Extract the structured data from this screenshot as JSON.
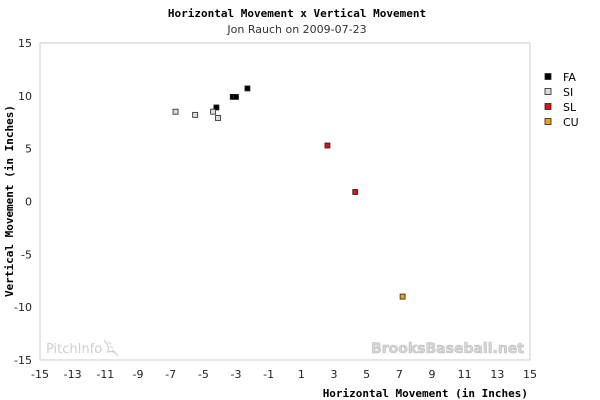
{
  "chart_data": {
    "type": "scatter",
    "title": "Horizontal Movement x Vertical Movement",
    "subtitle": "Jon Rauch on 2009-07-23",
    "xlabel": "Horizontal Movement (in Inches)",
    "ylabel": "Vertical Movement (in Inches)",
    "xlim": [
      -15,
      15
    ],
    "ylim": [
      -15,
      15
    ],
    "xticks": [
      -15,
      -13,
      -11,
      -9,
      -7,
      -5,
      -3,
      -1,
      1,
      3,
      5,
      7,
      9,
      11,
      13,
      15
    ],
    "yticks": [
      15,
      10,
      5,
      0,
      -5,
      -10,
      -15
    ],
    "grid": false,
    "legend_position": "right",
    "series": [
      {
        "name": "FA",
        "color": "#000000",
        "points": [
          [
            -4.2,
            8.9
          ],
          [
            -3.2,
            9.9
          ],
          [
            -3.0,
            9.9
          ],
          [
            -2.3,
            10.7
          ]
        ]
      },
      {
        "name": "SI",
        "color": "#dddddd",
        "points": [
          [
            -6.7,
            8.5
          ],
          [
            -5.5,
            8.2
          ],
          [
            -4.4,
            8.5
          ],
          [
            -4.1,
            7.9
          ]
        ]
      },
      {
        "name": "SL",
        "color": "#dd1111",
        "points": [
          [
            2.6,
            5.3
          ],
          [
            4.3,
            0.9
          ]
        ]
      },
      {
        "name": "CU",
        "color": "#f0a020",
        "points": [
          [
            7.2,
            -9.0
          ]
        ]
      }
    ]
  },
  "watermarks": {
    "left": "PitchInfo",
    "right": "BrooksBaseball.net"
  }
}
